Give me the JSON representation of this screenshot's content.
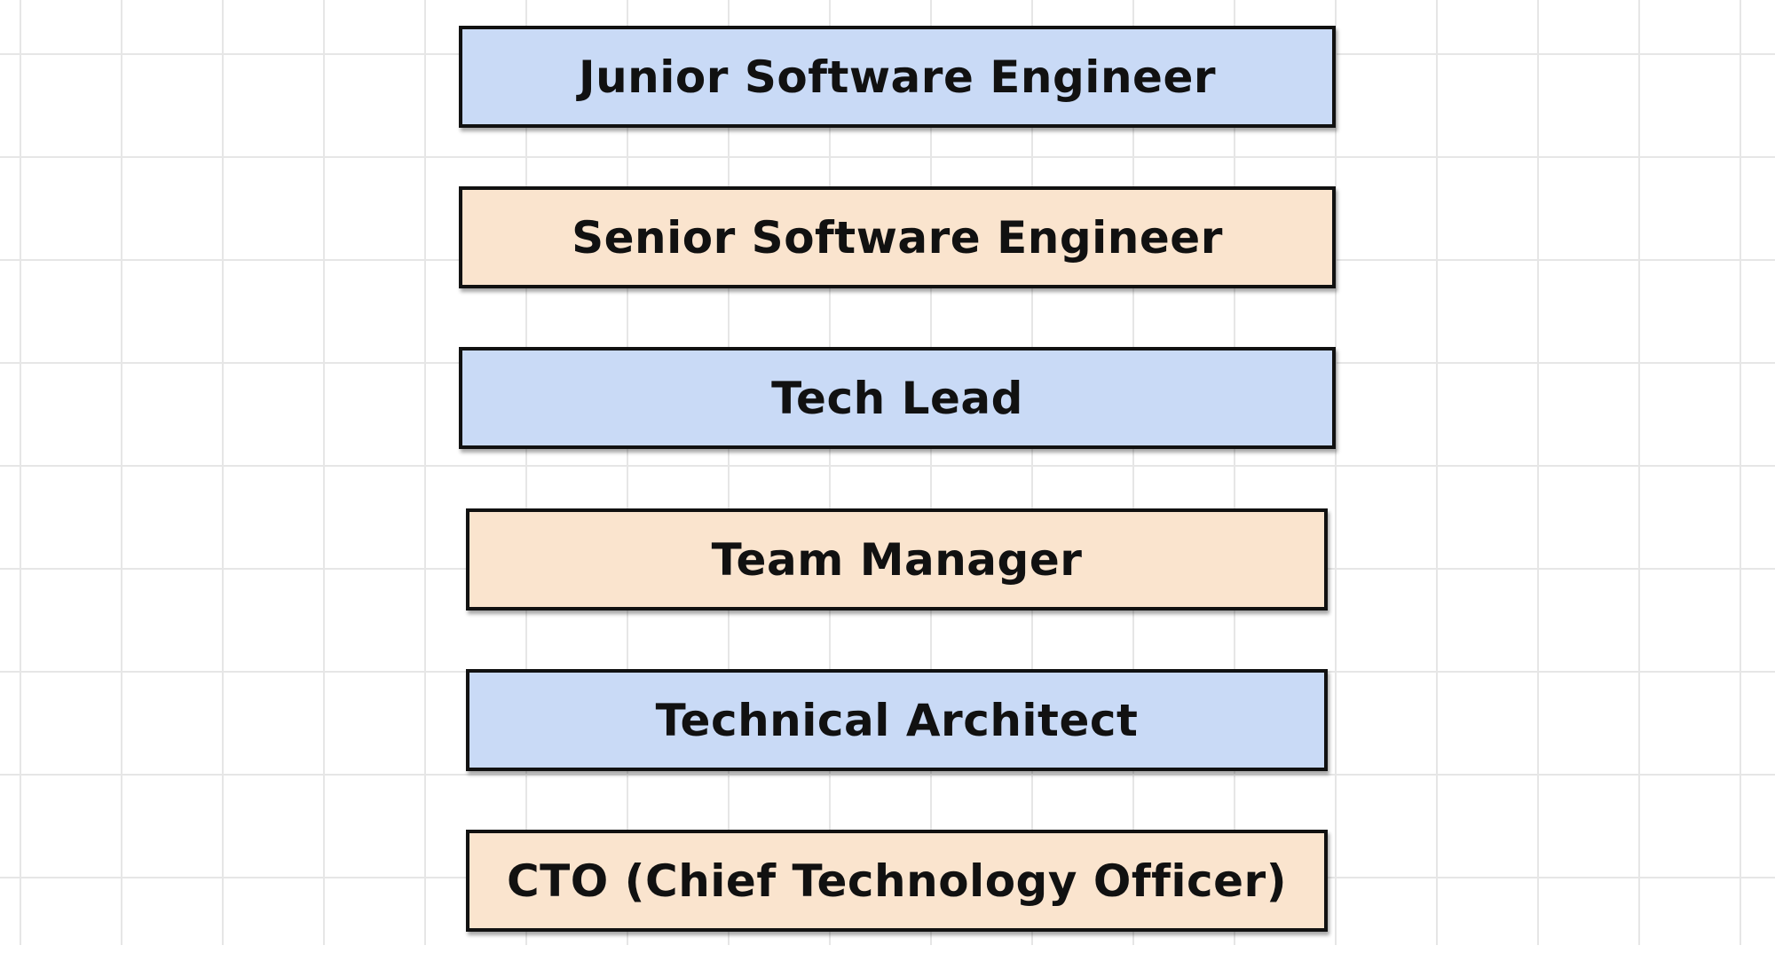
{
  "colors": {
    "blue_fill": "#c9daf6",
    "peach_fill": "#fae4ce",
    "border": "#111111",
    "grid": "#e6e6e6"
  },
  "diagram": {
    "boxes": [
      {
        "label": "Junior Software Engineer",
        "fill": "blue"
      },
      {
        "label": "Senior Software Engineer",
        "fill": "peach"
      },
      {
        "label": "Tech Lead",
        "fill": "blue"
      },
      {
        "label": "Team Manager",
        "fill": "peach"
      },
      {
        "label": "Technical Architect",
        "fill": "blue"
      },
      {
        "label": "CTO (Chief Technology Officer)",
        "fill": "peach"
      }
    ]
  }
}
